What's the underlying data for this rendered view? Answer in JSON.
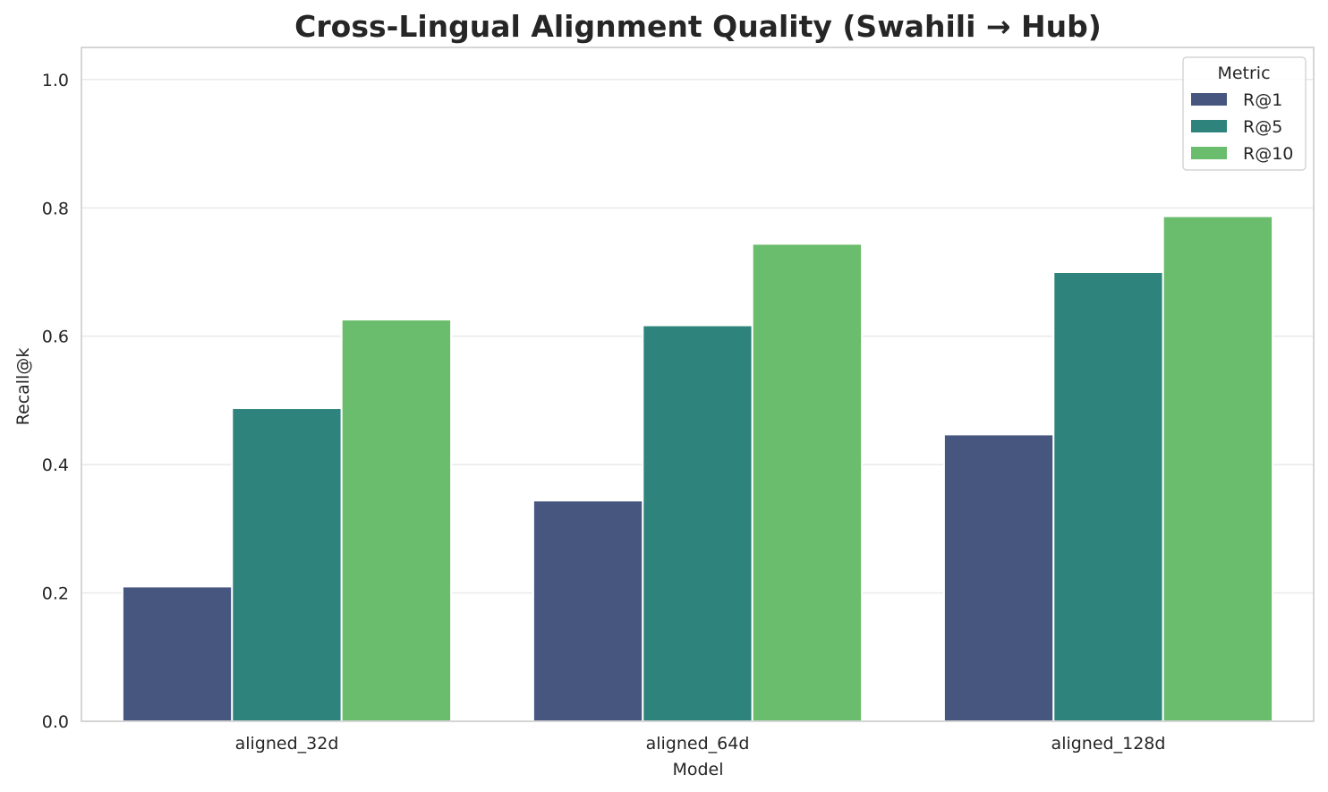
{
  "chart_data": {
    "type": "bar",
    "title": "Cross-Lingual Alignment Quality (Swahili → Hub)",
    "xlabel": "Model",
    "ylabel": "Recall@k",
    "categories": [
      "aligned_32d",
      "aligned_64d",
      "aligned_128d"
    ],
    "series": [
      {
        "name": "R@1",
        "values": [
          0.21,
          0.344,
          0.447
        ],
        "color": "#46567f"
      },
      {
        "name": "R@5",
        "values": [
          0.488,
          0.617,
          0.7
        ],
        "color": "#2e837d"
      },
      {
        "name": "R@10",
        "values": [
          0.626,
          0.744,
          0.787
        ],
        "color": "#6abd6c"
      }
    ],
    "ylim": [
      0,
      1.05
    ],
    "yticks": [
      "0.0",
      "0.2",
      "0.4",
      "0.6",
      "0.8",
      "1.0"
    ],
    "grid": "y",
    "legend": {
      "title": "Metric",
      "placement": "top-right"
    }
  }
}
